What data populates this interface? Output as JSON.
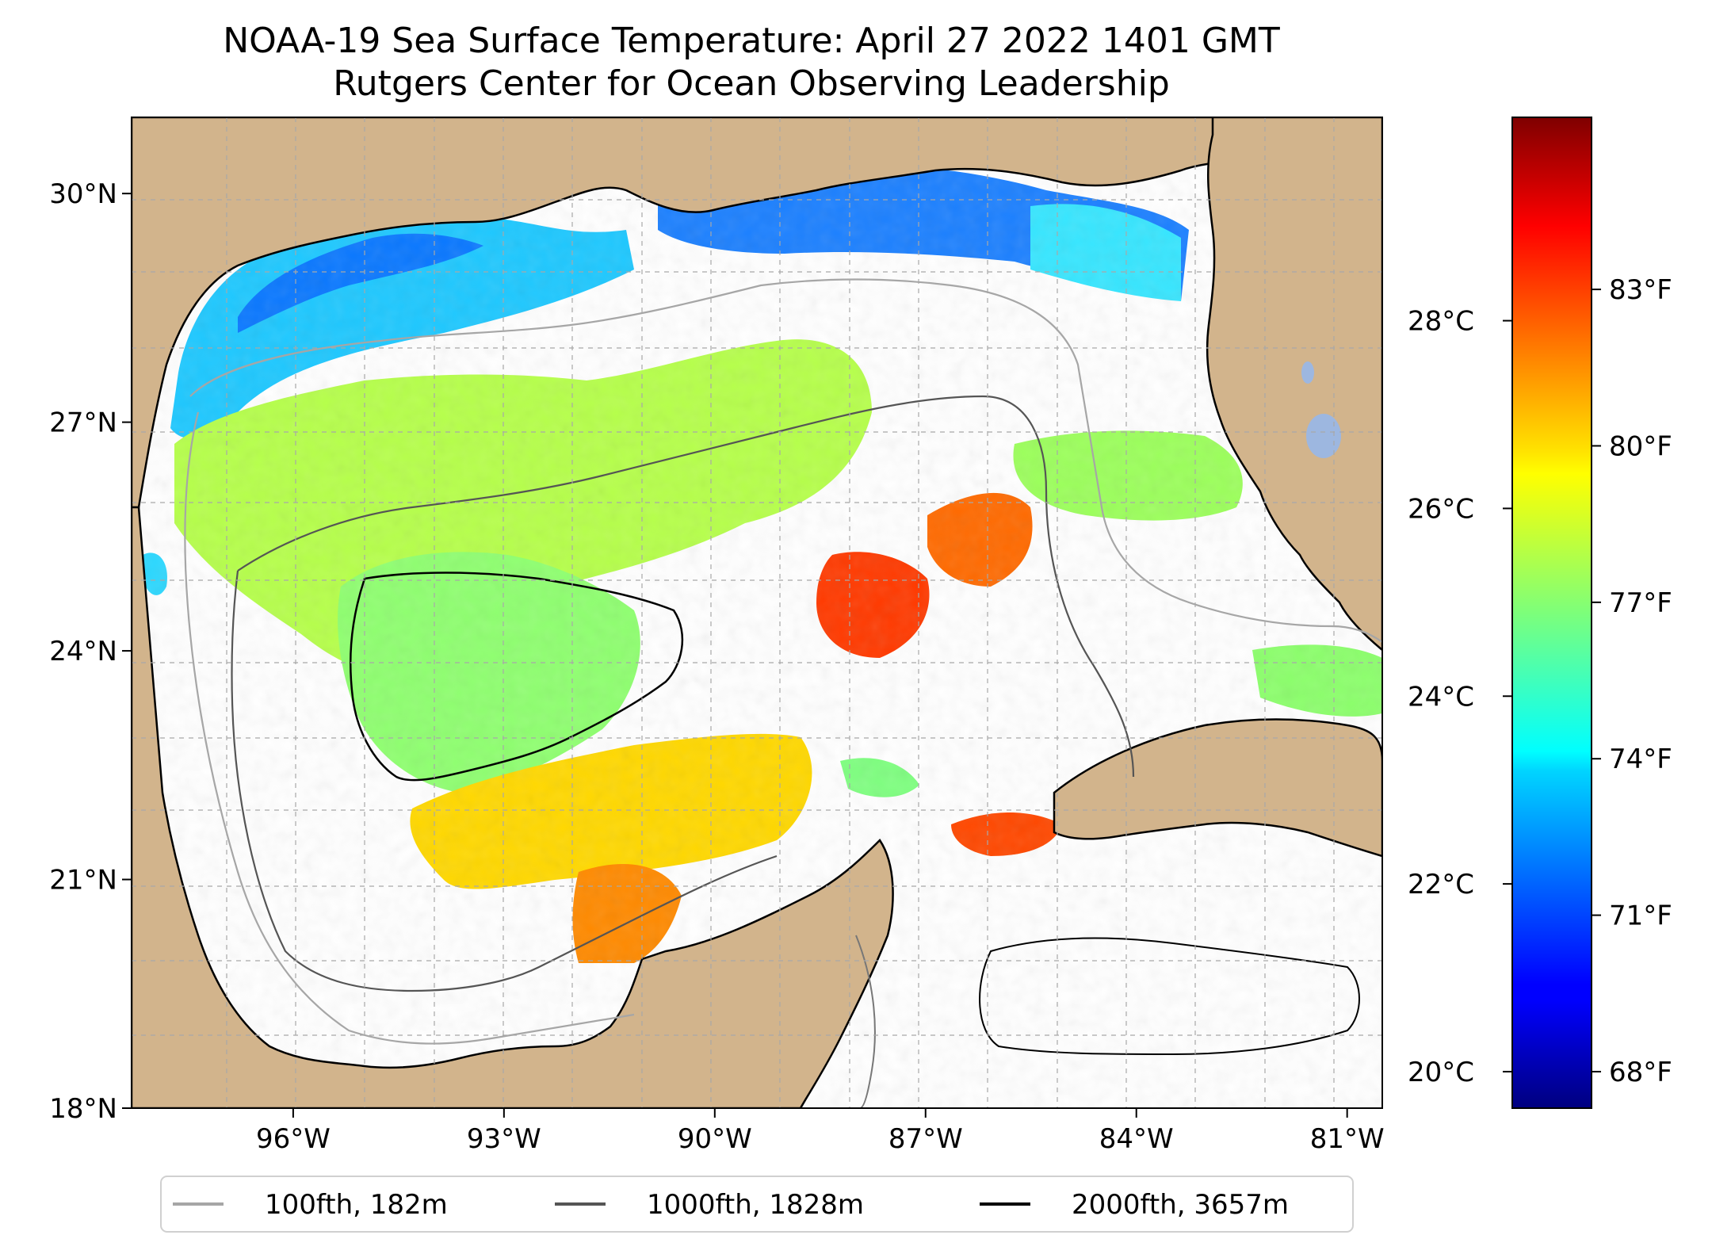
{
  "title": {
    "line1": "NOAA-19 Sea Surface Temperature: April 27 2022 1401 GMT",
    "line2": "Rutgers Center for Ocean Observing Leadership"
  },
  "map": {
    "extent": {
      "lon": [
        -98.3,
        -80.5
      ],
      "lat": [
        18,
        31
      ]
    },
    "lat_ticks": [
      {
        "value": 30,
        "label": "30°N"
      },
      {
        "value": 27,
        "label": "27°N"
      },
      {
        "value": 24,
        "label": "24°N"
      },
      {
        "value": 21,
        "label": "21°N"
      },
      {
        "value": 18,
        "label": "18°N"
      }
    ],
    "lon_ticks": [
      {
        "value": -96,
        "label": "96°W"
      },
      {
        "value": -93,
        "label": "93°W"
      },
      {
        "value": -90,
        "label": "90°W"
      },
      {
        "value": -87,
        "label": "87°W"
      },
      {
        "value": -84,
        "label": "84°W"
      },
      {
        "value": -81,
        "label": "81°W"
      }
    ],
    "colors": {
      "land": "#d2b48c",
      "ocean_nodata": "#ffffff",
      "lakes": "#9db7e0",
      "grid": "#b0b0b0"
    }
  },
  "colorbar": {
    "colormap": "jet",
    "celsius_ticks": [
      {
        "value": 28,
        "label": "28°C"
      },
      {
        "value": 26,
        "label": "26°C"
      },
      {
        "value": 24,
        "label": "24°C"
      },
      {
        "value": 22,
        "label": "22°C"
      },
      {
        "value": 20,
        "label": "20°C"
      }
    ],
    "fahrenheit_ticks": [
      {
        "value": 83,
        "label": "83°F"
      },
      {
        "value": 80,
        "label": "80°F"
      },
      {
        "value": 77,
        "label": "77°F"
      },
      {
        "value": 74,
        "label": "74°F"
      },
      {
        "value": 71,
        "label": "71°F"
      },
      {
        "value": 68,
        "label": "68°F"
      }
    ]
  },
  "legend": {
    "items": [
      {
        "label": "100fth, 182m",
        "color": "#a6a6a6"
      },
      {
        "label": "1000fth, 1828m",
        "color": "#555555"
      },
      {
        "label": "2000fth, 3657m",
        "color": "#000000"
      }
    ]
  }
}
